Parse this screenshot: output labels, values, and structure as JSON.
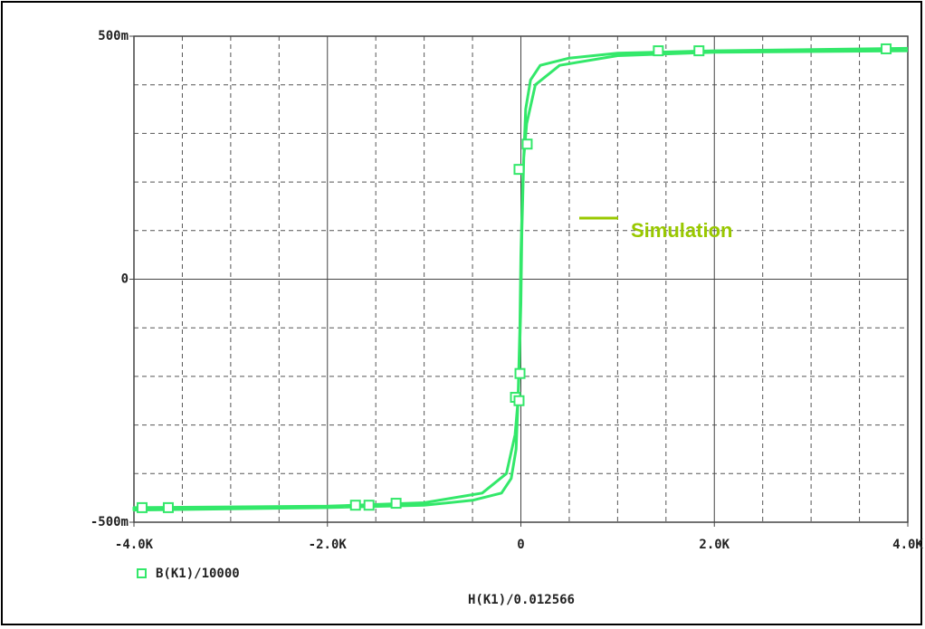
{
  "chart_data": {
    "type": "line",
    "series": [
      {
        "name": "B(K1)/10000",
        "color": "#33e86a",
        "x": [
          4000,
          2000,
          1000,
          500,
          200,
          100,
          50,
          20,
          0,
          -10,
          -30,
          -60,
          -150,
          -400,
          -1000,
          -2000,
          -4000,
          -4000,
          -2000,
          -1000,
          -500,
          -200,
          -100,
          -50,
          -20,
          0,
          10,
          30,
          60,
          150,
          400,
          1000,
          2000,
          4000
        ],
        "values": [
          0.475,
          0.47,
          0.465,
          0.455,
          0.44,
          0.41,
          0.35,
          0.2,
          0.05,
          -0.1,
          -0.25,
          -0.32,
          -0.4,
          -0.44,
          -0.46,
          -0.467,
          -0.47,
          -0.475,
          -0.47,
          -0.465,
          -0.455,
          -0.44,
          -0.41,
          -0.35,
          -0.2,
          -0.05,
          0.1,
          0.25,
          0.32,
          0.4,
          0.44,
          0.46,
          0.467,
          0.47
        ],
        "marker_x": [
          -3916,
          -3645,
          -1710,
          -1570,
          -1290,
          1421,
          1841,
          3776,
          -19,
          65,
          -9,
          -56,
          -19
        ],
        "marker_values": [
          -0.47,
          -0.47,
          -0.465,
          -0.465,
          -0.461,
          0.47,
          0.47,
          0.474,
          0.226,
          0.278,
          -0.194,
          -0.243,
          -0.25
        ]
      }
    ],
    "xlim": [
      -4000,
      4000
    ],
    "ylim": [
      -0.5,
      0.5
    ],
    "xticks": [
      {
        "value": -4000,
        "label": "-4.0K"
      },
      {
        "value": -2000,
        "label": "-2.0K"
      },
      0,
      {
        "value": 2000,
        "label": "2.0K"
      },
      {
        "value": 4000,
        "label": "4.0K"
      }
    ],
    "yticks": [
      {
        "value": -0.5,
        "label": "-500m"
      },
      0,
      {
        "value": 0.5,
        "label": "500m"
      }
    ],
    "xminorticks": [
      -3500,
      -3000,
      -2500,
      -1500,
      -1000,
      -500,
      500,
      1000,
      1500,
      2500,
      3000,
      3500
    ],
    "yminorticks": [
      -0.4,
      -0.3,
      -0.2,
      -0.1,
      0.1,
      0.2,
      0.3,
      0.4
    ],
    "xlabel": "H(K1)/0.012566",
    "annotation": {
      "text": "Simulation",
      "color": "#99c800"
    },
    "grid": true
  }
}
